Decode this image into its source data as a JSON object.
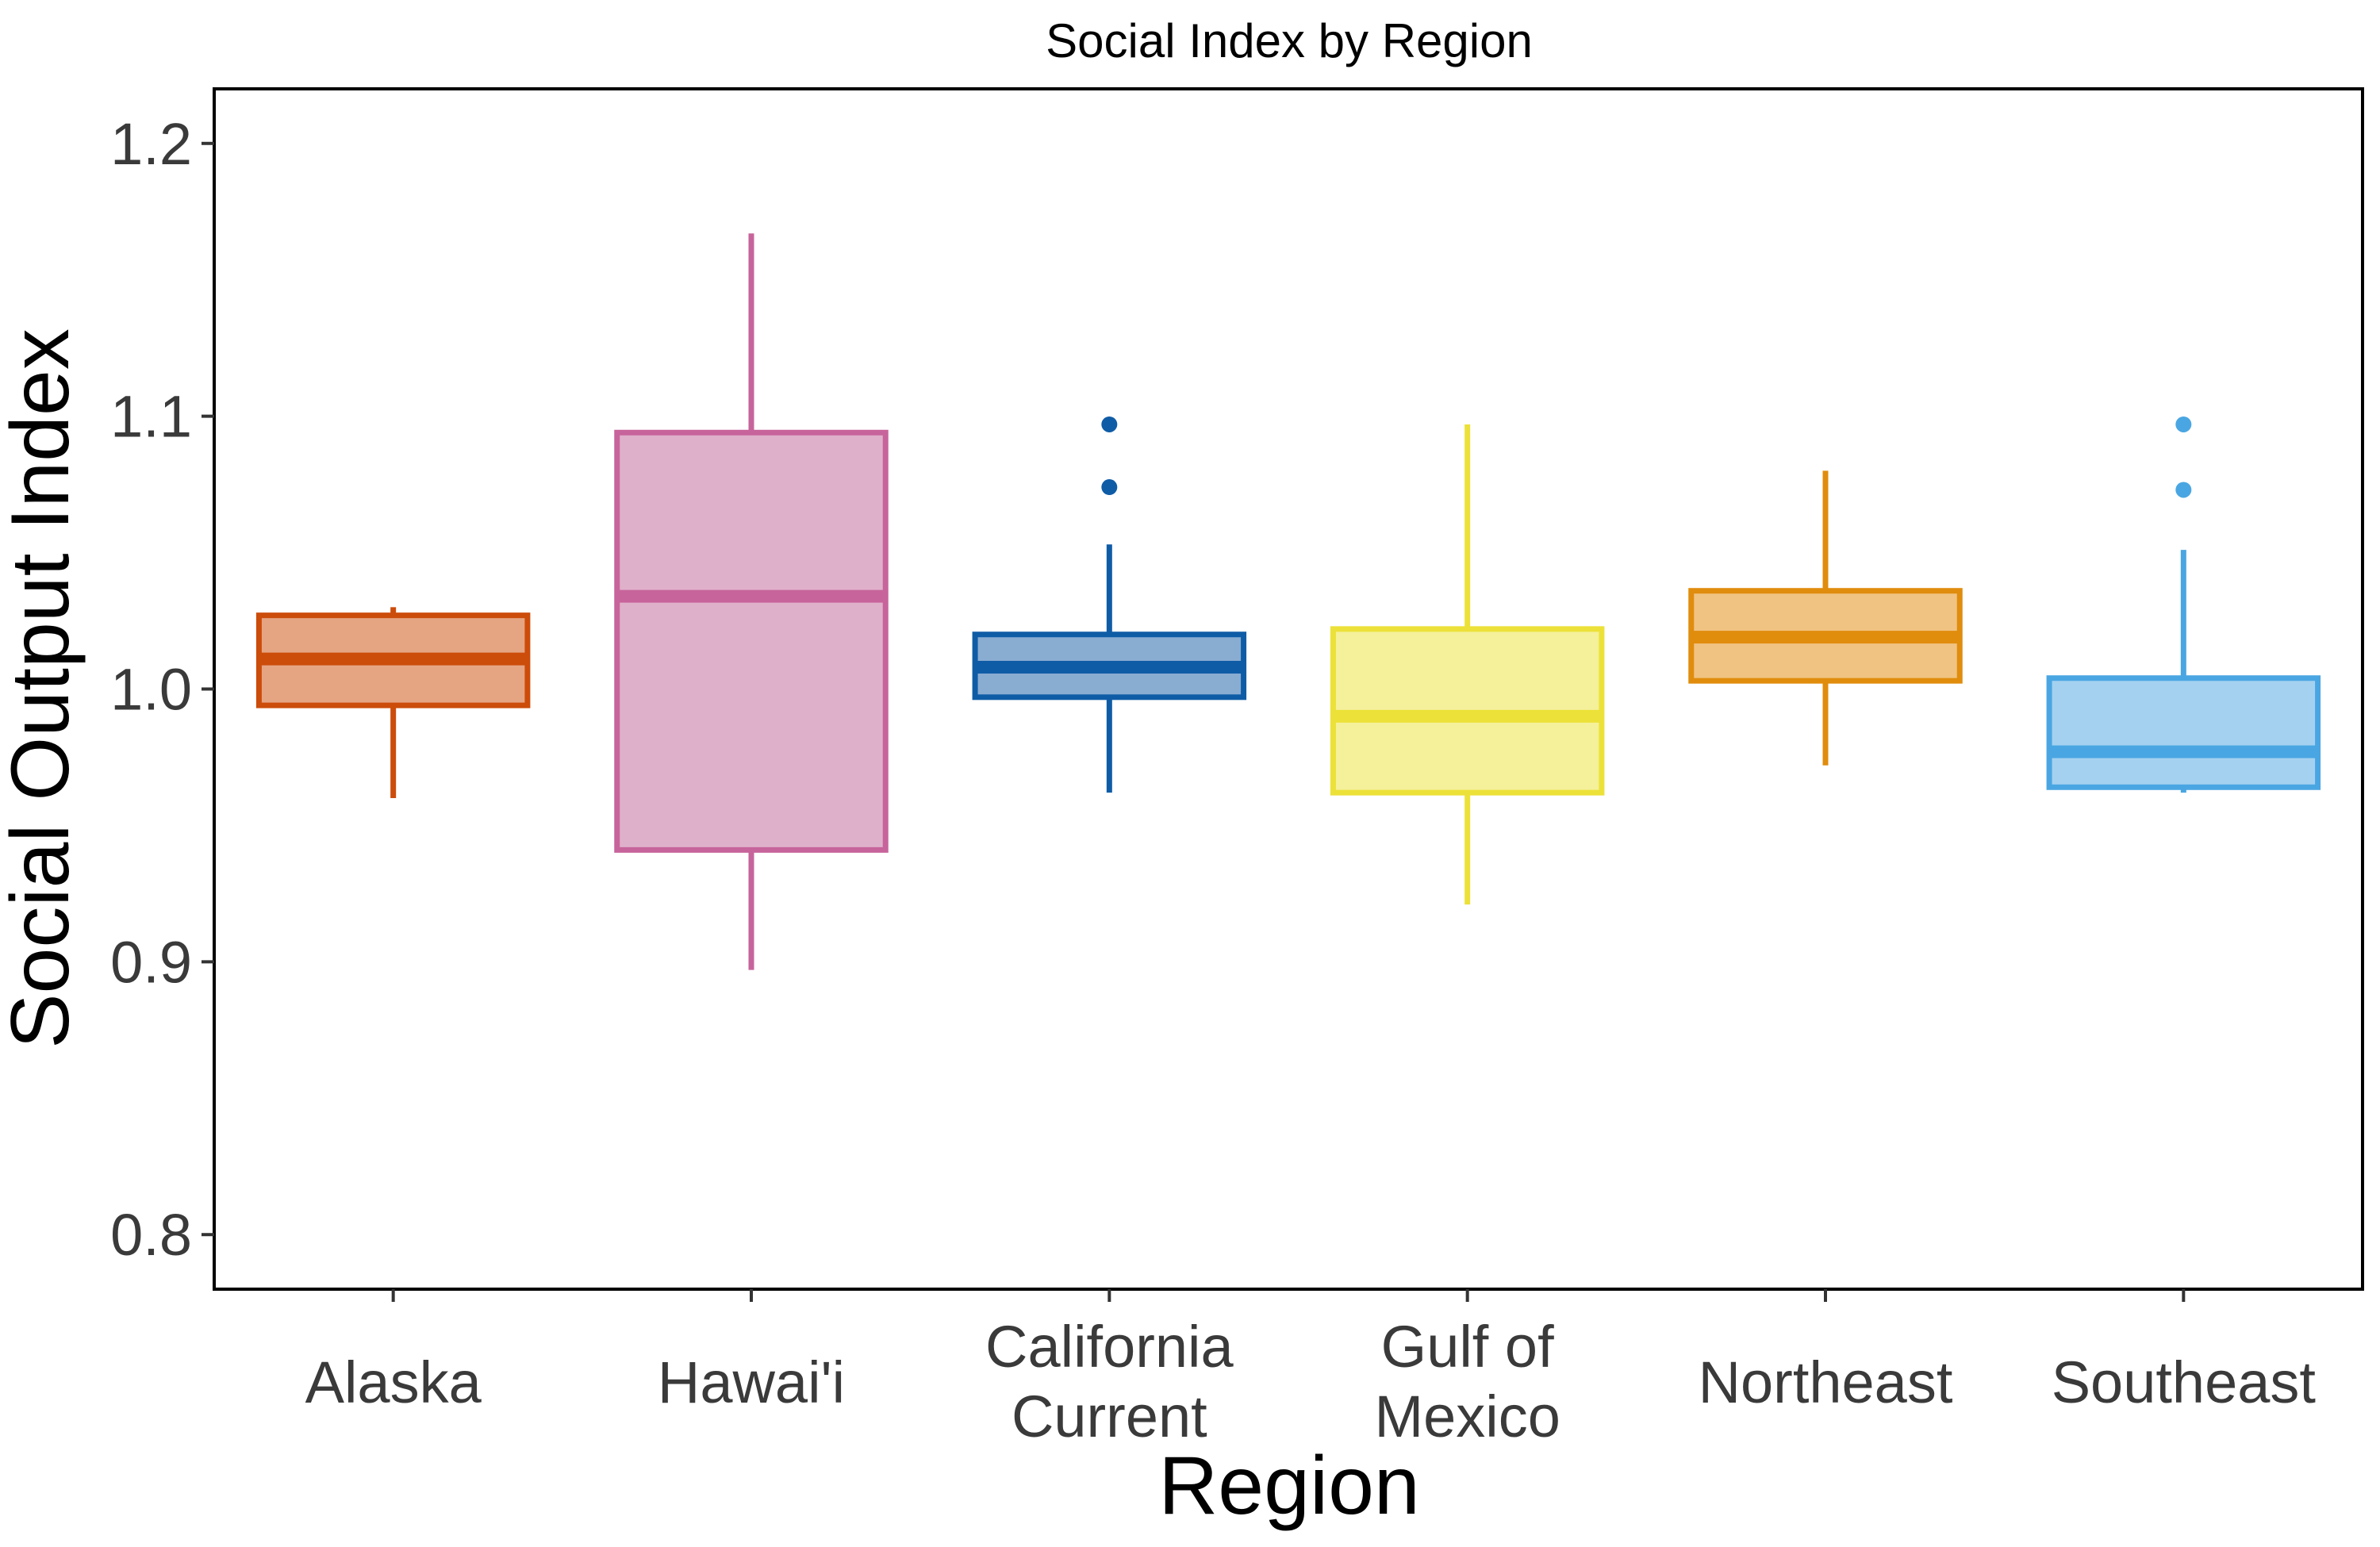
{
  "chart_data": {
    "type": "box",
    "title": "Social Index by Region",
    "xlabel": "Region",
    "ylabel": "Social Output Index",
    "ylim": [
      0.78,
      1.22
    ],
    "yticks": [
      0.8,
      0.9,
      1.0,
      1.1,
      1.2
    ],
    "ytick_labels": [
      "0.8",
      "0.9",
      "1.0",
      "1.1",
      "1.2"
    ],
    "grid": false,
    "legend": "none",
    "categories": [
      {
        "label_lines": [
          "Alaska"
        ],
        "color": "#cc4c0a",
        "fill": "#e5a583",
        "whisker_low": 0.96,
        "q1": 0.994,
        "median": 1.011,
        "q3": 1.027,
        "whisker_high": 1.03,
        "outliers": []
      },
      {
        "label_lines": [
          "Hawai'i"
        ],
        "color": "#c7649b",
        "fill": "#dfb0ca",
        "whisker_low": 0.897,
        "q1": 0.941,
        "median": 1.034,
        "q3": 1.094,
        "whisker_high": 1.167,
        "outliers": []
      },
      {
        "label_lines": [
          "California",
          "Current"
        ],
        "color": "#0f5ca6",
        "fill": "#89acd1",
        "whisker_low": 0.962,
        "q1": 0.997,
        "median": 1.008,
        "q3": 1.02,
        "whisker_high": 1.053,
        "outliers": [
          1.074,
          1.097
        ]
      },
      {
        "label_lines": [
          "Gulf of",
          "Mexico"
        ],
        "color": "#ece138",
        "fill": "#f5f09a",
        "whisker_low": 0.921,
        "q1": 0.962,
        "median": 0.99,
        "q3": 1.022,
        "whisker_high": 1.097,
        "outliers": []
      },
      {
        "label_lines": [
          "Northeast"
        ],
        "color": "#e08c0d",
        "fill": "#f0c382",
        "whisker_low": 0.972,
        "q1": 1.003,
        "median": 1.019,
        "q3": 1.036,
        "whisker_high": 1.08,
        "outliers": []
      },
      {
        "label_lines": [
          "Southeast"
        ],
        "color": "#4aa6e2",
        "fill": "#a5d1f0",
        "whisker_low": 0.962,
        "q1": 0.964,
        "median": 0.977,
        "q3": 1.004,
        "whisker_high": 1.051,
        "outliers": [
          1.073,
          1.097
        ]
      }
    ]
  }
}
